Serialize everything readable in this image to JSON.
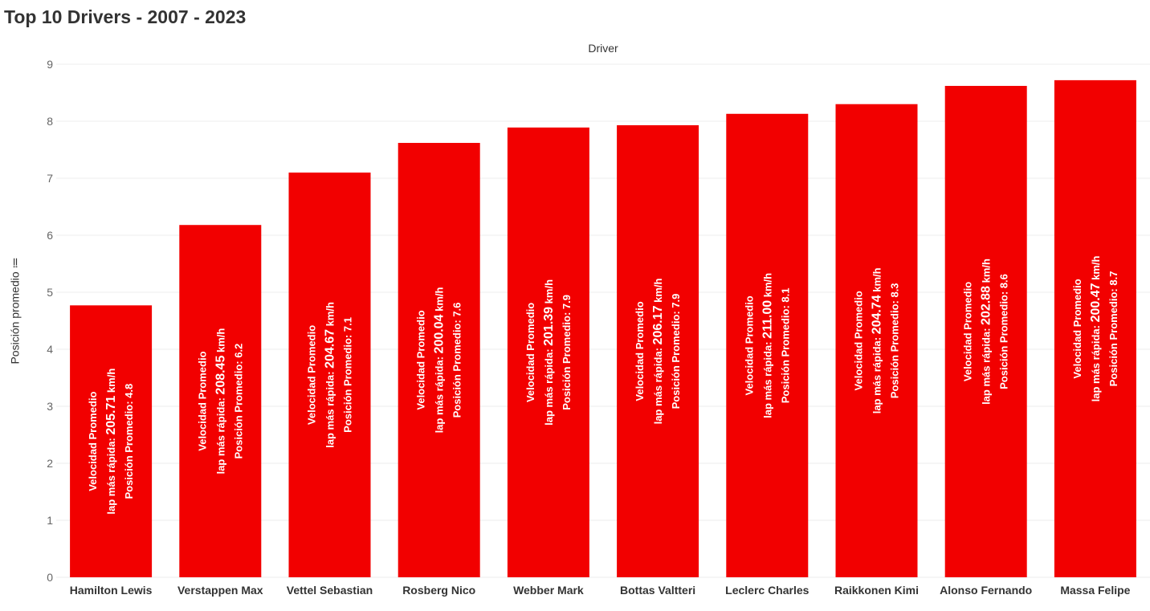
{
  "title": "Top 10 Drivers - 2007 - 2023",
  "column_header": "Driver",
  "y_axis_title": "Posición promedio ≔",
  "colors": {
    "bar": "#f20000",
    "grid": "#eeeeee",
    "label": "#ffffff"
  },
  "chart_data": {
    "type": "bar",
    "title": "Top 10 Drivers - 2007 - 2023",
    "xlabel": "Driver",
    "ylabel": "Posición promedio",
    "ylim": [
      0,
      9
    ],
    "yticks": [
      0,
      1,
      2,
      3,
      4,
      5,
      6,
      7,
      8,
      9
    ],
    "grid": true,
    "categories": [
      "Hamilton Lewis",
      "Verstappen Max",
      "Vettel Sebastian",
      "Rosberg Nico",
      "Webber Mark",
      "Bottas Valtteri",
      "Leclerc Charles",
      "Raikkonen Kimi",
      "Alonso Fernando",
      "Massa Felipe"
    ],
    "values": [
      4.77,
      6.18,
      7.1,
      7.62,
      7.89,
      7.93,
      8.13,
      8.3,
      8.62,
      8.72
    ],
    "label_line1": "Velocidad Promedio",
    "label_line2_prefix": "lap más rápida: ",
    "label_unit": " km/h",
    "label_line3_prefix": "Posición Promedio: ",
    "speeds": [
      "205.71",
      "208.45",
      "204.67",
      "200.04",
      "201.39",
      "206.17",
      "211.00",
      "204.74",
      "202.88",
      "200.47"
    ],
    "positions_label": [
      "4.8",
      "6.2",
      "7.1",
      "7.6",
      "7.9",
      "7.9",
      "8.1",
      "8.3",
      "8.6",
      "8.7"
    ]
  }
}
